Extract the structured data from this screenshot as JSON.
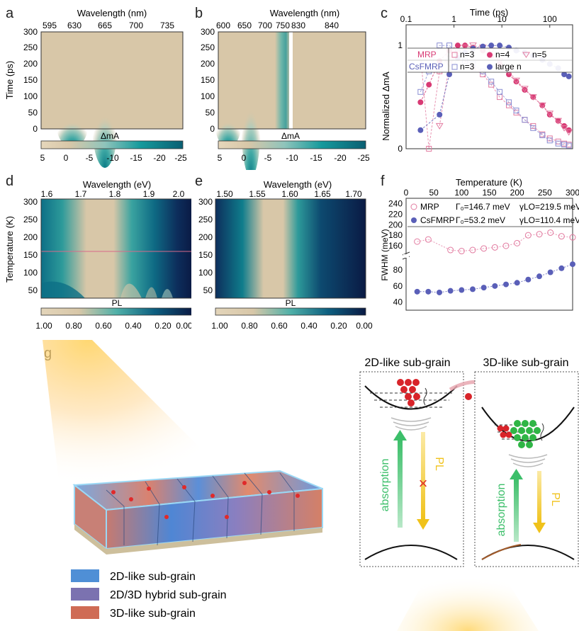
{
  "panel_labels": [
    "a",
    "b",
    "c",
    "d",
    "e",
    "f",
    "g"
  ],
  "colors": {
    "beige": "#d8c7a8",
    "teal": "#0f7d8c",
    "navy": "#0d1e4a",
    "pink": "#d83a74",
    "blue": "#5a5fb8",
    "mrp_hollow": "#e27ba0",
    "cs_hollow": "#8a8ed2"
  },
  "panel_a": {
    "xlabel": "Wavelength (nm)",
    "ylabel": "Time (ps)",
    "xticks": [
      "595",
      "630",
      "665",
      "700",
      "735"
    ],
    "yticks": [
      "0",
      "50",
      "100",
      "150",
      "200",
      "250",
      "300"
    ],
    "cbar_title": "ΔmA",
    "cbar_ticks": [
      "5",
      "0",
      "-5",
      "-10",
      "-15",
      "-20",
      "-25"
    ]
  },
  "panel_b": {
    "xlabel": "Wavelength (nm)",
    "xticks": [
      "600",
      "650",
      "700",
      "750",
      "830",
      "840"
    ],
    "yticks": [
      "0",
      "50",
      "100",
      "150",
      "200",
      "250",
      "300"
    ],
    "cbar_title": "ΔmA",
    "cbar_ticks": [
      "5",
      "0",
      "-5",
      "-10",
      "-15",
      "-20",
      "-25"
    ]
  },
  "panel_d": {
    "xlabel": "Wavelength (eV)",
    "ylabel": "Temperature (K)",
    "xticks": [
      "1.6",
      "1.7",
      "1.8",
      "1.9",
      "2.0"
    ],
    "yticks": [
      "50",
      "100",
      "150",
      "200",
      "250",
      "300"
    ],
    "cbar_title": "PL",
    "cbar_ticks": [
      "1.00",
      "0.80",
      "0.60",
      "0.40",
      "0.20",
      "0.00"
    ]
  },
  "panel_e": {
    "xlabel": "Wavelength (eV)",
    "xticks": [
      "1.50",
      "1.55",
      "1.60",
      "1.65",
      "1.70"
    ],
    "yticks": [
      "50",
      "100",
      "150",
      "200",
      "250",
      "300"
    ],
    "cbar_title": "PL",
    "cbar_ticks": [
      "1.00",
      "0.80",
      "0.60",
      "0.40",
      "0.20",
      "0.00"
    ]
  },
  "chart_data": [
    {
      "type": "scatter",
      "panel": "c",
      "xlabel": "Time (ps)",
      "ylabel": "Normalized ΔmA",
      "xscale": "log",
      "xlim": [
        0.1,
        300
      ],
      "ylim": [
        0,
        1.2
      ],
      "xticks": [
        "0.1",
        "1",
        "10",
        "100"
      ],
      "yticks": [
        "0",
        "1"
      ],
      "legend": {
        "row1_label": "MRP",
        "row2_label": "CsFMRP",
        "entries": [
          "n=3",
          "n=4",
          "n=5",
          "n=3",
          "large n"
        ]
      },
      "series": [
        {
          "name": "n=3",
          "group": "MRP",
          "marker": "square-hollow",
          "color": "#e27ba0",
          "x": [
            0.2,
            0.3,
            0.5,
            0.8,
            1.2,
            1.7,
            2.5,
            4,
            6,
            9,
            14,
            20,
            30,
            45,
            70,
            100,
            150,
            200,
            250
          ],
          "y": [
            0.92,
            0.0,
            0.75,
            0.92,
            0.93,
            0.85,
            0.78,
            0.72,
            0.62,
            0.5,
            0.42,
            0.35,
            0.28,
            0.22,
            0.14,
            0.1,
            0.07,
            0.05,
            0.04
          ]
        },
        {
          "name": "n=4",
          "group": "MRP",
          "marker": "circle-filled",
          "color": "#d83a74",
          "x": [
            0.2,
            0.3,
            0.5,
            0.8,
            1.2,
            1.7,
            2.5,
            4,
            6,
            9,
            14,
            20,
            30,
            45,
            70,
            100,
            150,
            200,
            250
          ],
          "y": [
            0.45,
            0.62,
            0.85,
            0.95,
            1.0,
            1.0,
            0.98,
            0.95,
            0.9,
            0.82,
            0.72,
            0.65,
            0.57,
            0.5,
            0.42,
            0.33,
            0.27,
            0.22,
            0.18
          ]
        },
        {
          "name": "n=5",
          "group": "MRP",
          "marker": "triangle-hollow",
          "color": "#e27ba0",
          "x": [
            0.5,
            0.8,
            1.2,
            1.7,
            2.5,
            4,
            6,
            9,
            14,
            20,
            30,
            45,
            70,
            100,
            150,
            200,
            250
          ],
          "y": [
            0.22,
            0.82,
            0.92,
            0.98,
            1.0,
            0.98,
            0.95,
            0.85,
            0.75,
            0.66,
            0.58,
            0.5,
            0.42,
            0.34,
            0.27,
            0.2,
            0.16
          ]
        },
        {
          "name": "n=3",
          "group": "CsFMRP",
          "marker": "square-hollow",
          "color": "#8a8ed2",
          "x": [
            0.2,
            0.3,
            0.5,
            0.8,
            1.2,
            1.7,
            2.5,
            4,
            6,
            9,
            14,
            20,
            30,
            45,
            70,
            100,
            150,
            200,
            250
          ],
          "y": [
            0.55,
            0.75,
            1.0,
            1.0,
            0.93,
            0.85,
            0.82,
            0.75,
            0.65,
            0.55,
            0.45,
            0.37,
            0.28,
            0.2,
            0.13,
            0.08,
            0.05,
            0.04,
            0.03
          ]
        },
        {
          "name": "large n",
          "group": "CsFMRP",
          "marker": "circle-filled",
          "color": "#5a5fb8",
          "x": [
            0.2,
            0.5,
            0.8,
            1.2,
            1.7,
            2.5,
            4,
            6,
            9,
            14,
            20,
            30,
            45,
            70,
            100,
            150,
            200,
            250
          ],
          "y": [
            0.18,
            0.33,
            0.72,
            0.88,
            0.93,
            0.97,
            0.99,
            1.0,
            1.0,
            0.98,
            0.95,
            0.93,
            0.9,
            0.86,
            0.82,
            0.78,
            0.72,
            0.7
          ]
        }
      ]
    },
    {
      "type": "scatter",
      "panel": "f",
      "xlabel": "Temperature (K)",
      "ylabel": "FWHM (meV)",
      "xlim": [
        0,
        300
      ],
      "xticks": [
        "0",
        "50",
        "100",
        "150",
        "200",
        "250",
        "300"
      ],
      "yticks_upper": [
        "160",
        "180",
        "200",
        "220",
        "240"
      ],
      "yticks_lower": [
        "40",
        "60",
        "80"
      ],
      "broken_axis": true,
      "legend": {
        "entries": [
          {
            "name": "MRP",
            "gamma0": "Γ₀=146.7 meV",
            "gammaLO": "γLO=219.5 meV"
          },
          {
            "name": "CsFMRP",
            "gamma0": "Γ₀=53.2 meV",
            "gammaLO": "γLO=110.4 meV"
          }
        ]
      },
      "series": [
        {
          "name": "MRP",
          "marker": "circle-hollow",
          "color": "#e27ba0",
          "x": [
            20,
            40,
            80,
            100,
            120,
            140,
            160,
            180,
            200,
            220,
            240,
            260,
            280,
            300
          ],
          "y": [
            168,
            172,
            152,
            150,
            152,
            155,
            157,
            160,
            165,
            180,
            182,
            185,
            178,
            176
          ]
        },
        {
          "name": "CsFMRP",
          "marker": "circle-filled",
          "color": "#5a5fb8",
          "x": [
            20,
            40,
            60,
            80,
            100,
            120,
            140,
            160,
            180,
            200,
            220,
            240,
            260,
            280,
            300
          ],
          "y": [
            53,
            53,
            52,
            54,
            55,
            56,
            58,
            60,
            62,
            64,
            68,
            72,
            77,
            82,
            87
          ]
        }
      ]
    }
  ],
  "panel_g": {
    "left_box_title": "2D-like sub-grain",
    "right_box_title": "3D-like sub-grain",
    "absorption": "absorption",
    "pl": "PL",
    "blocked": "×",
    "legend": [
      {
        "label": "2D-like sub-grain",
        "color": "#4f8fd6"
      },
      {
        "label": "2D/3D hybrid sub-grain",
        "color": "#7b72b0"
      },
      {
        "label": "3D-like sub-grain",
        "color": "#cf6b55"
      }
    ]
  }
}
